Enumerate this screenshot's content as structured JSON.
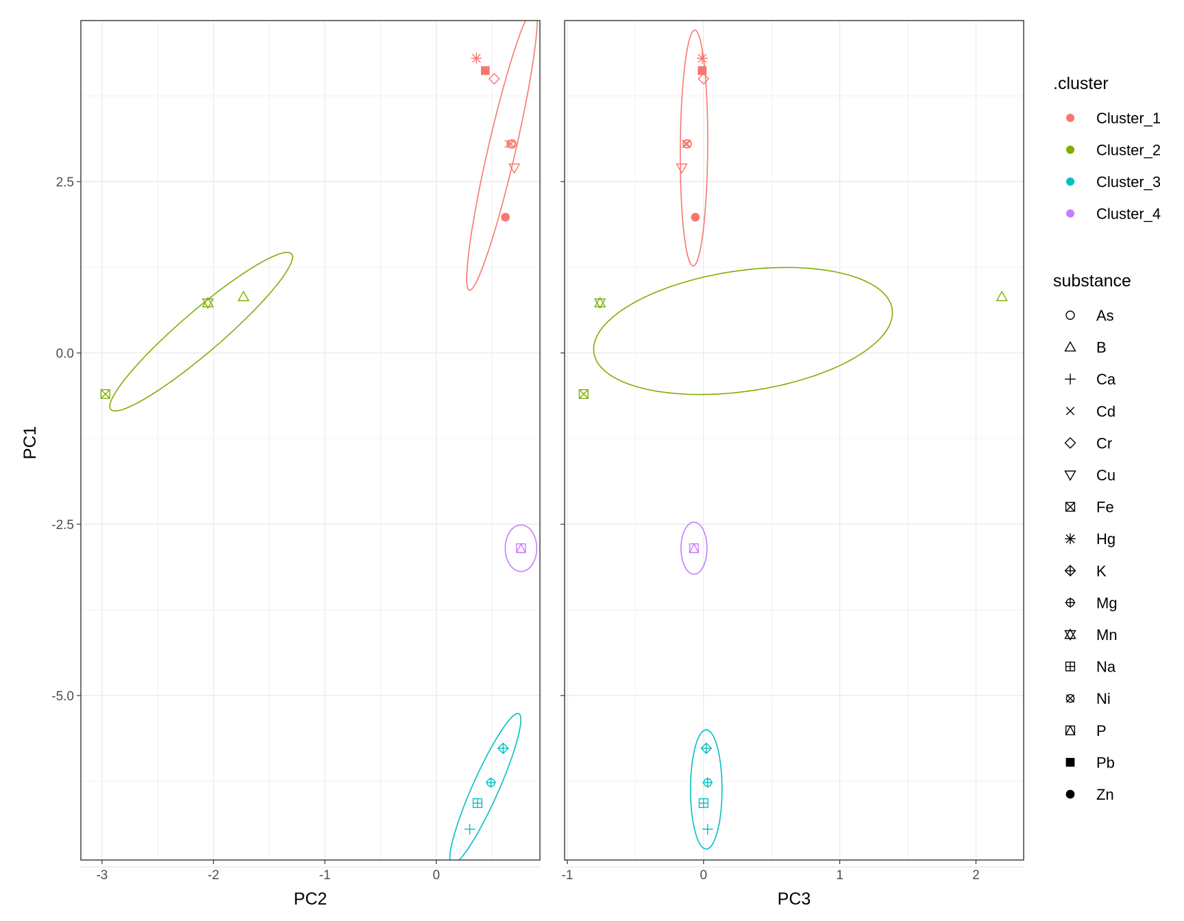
{
  "chart_data": {
    "type": "scatter",
    "ylabel": "PC1",
    "y_ticks": [
      2.5,
      0.0,
      -2.5,
      -5.0
    ],
    "y_tick_labels": [
      "2.5",
      "0.0",
      "-2.5",
      "-5.0"
    ],
    "ylim": [
      -7.4,
      4.85
    ],
    "grid": true,
    "legend_position": "right",
    "colors": {
      "Cluster_1": "#F8766D",
      "Cluster_2": "#7CAE00",
      "Cluster_3": "#00BFC4",
      "Cluster_4": "#C77CFF"
    },
    "legends": {
      "cluster": {
        "title": ".cluster",
        "items": [
          "Cluster_1",
          "Cluster_2",
          "Cluster_3",
          "Cluster_4"
        ]
      },
      "substance": {
        "title": "substance",
        "items": [
          "As",
          "B",
          "Ca",
          "Cd",
          "Cr",
          "Cu",
          "Fe",
          "Hg",
          "K",
          "Mg",
          "Mn",
          "Na",
          "Ni",
          "P",
          "Pb",
          "Zn"
        ]
      }
    },
    "points": [
      {
        "substance": "As",
        "cluster": "Cluster_1",
        "PC1": 3.05,
        "PC2": 0.68,
        "PC3": -0.12
      },
      {
        "substance": "Cd",
        "cluster": "Cluster_1",
        "PC1": 3.05,
        "PC2": 0.65,
        "PC3": -0.13
      },
      {
        "substance": "Ni",
        "cluster": "Cluster_1",
        "PC1": 3.05,
        "PC2": 0.67,
        "PC3": -0.12
      },
      {
        "substance": "Cr",
        "cluster": "Cluster_1",
        "PC1": 4.0,
        "PC2": 0.52,
        "PC3": 0.0
      },
      {
        "substance": "Cu",
        "cluster": "Cluster_1",
        "PC1": 2.7,
        "PC2": 0.7,
        "PC3": -0.16
      },
      {
        "substance": "Hg",
        "cluster": "Cluster_1",
        "PC1": 4.3,
        "PC2": 0.36,
        "PC3": -0.01
      },
      {
        "substance": "Pb",
        "cluster": "Cluster_1",
        "PC1": 4.12,
        "PC2": 0.44,
        "PC3": -0.01
      },
      {
        "substance": "Zn",
        "cluster": "Cluster_1",
        "PC1": 1.98,
        "PC2": 0.62,
        "PC3": -0.06
      },
      {
        "substance": "B",
        "cluster": "Cluster_2",
        "PC1": 0.82,
        "PC2": -1.73,
        "PC3": 2.19
      },
      {
        "substance": "Mn",
        "cluster": "Cluster_2",
        "PC1": 0.73,
        "PC2": -2.05,
        "PC3": -0.76
      },
      {
        "substance": "Fe",
        "cluster": "Cluster_2",
        "PC1": -0.6,
        "PC2": -2.97,
        "PC3": -0.88
      },
      {
        "substance": "K",
        "cluster": "Cluster_3",
        "PC1": -5.77,
        "PC2": 0.6,
        "PC3": 0.02
      },
      {
        "substance": "Mg",
        "cluster": "Cluster_3",
        "PC1": -6.27,
        "PC2": 0.49,
        "PC3": 0.03
      },
      {
        "substance": "Na",
        "cluster": "Cluster_3",
        "PC1": -6.57,
        "PC2": 0.37,
        "PC3": -0.0
      },
      {
        "substance": "Ca",
        "cluster": "Cluster_3",
        "PC1": -6.95,
        "PC2": 0.3,
        "PC3": 0.03
      },
      {
        "substance": "P",
        "cluster": "Cluster_4",
        "PC1": -2.85,
        "PC2": 0.76,
        "PC3": -0.07
      }
    ],
    "panels": [
      {
        "xlabel": "PC2",
        "xvar": "PC2",
        "xlim": [
          -3.19,
          0.93
        ],
        "x_ticks": [
          -3,
          -2,
          -1,
          0
        ],
        "x_tick_labels": [
          "-3",
          "-2",
          "-1",
          "0"
        ],
        "ellipses": [
          {
            "cluster": "Cluster_1",
            "cx": 0.59,
            "cy": 2.98,
            "a": 2.12,
            "b": 0.2,
            "angle_deg": 77.0
          },
          {
            "cluster": "Cluster_2",
            "cx": -2.11,
            "cy": 0.31,
            "a": 1.74,
            "b": 0.3,
            "angle_deg": 40.7
          },
          {
            "cluster": "Cluster_3",
            "cx": 0.44,
            "cy": -6.36,
            "a": 1.2,
            "b": 0.19,
            "angle_deg": 66.0
          },
          {
            "cluster": "Cluster_4",
            "cx": 0.76,
            "cy": -2.85,
            "a": 0.34,
            "b": 0.23,
            "angle_deg": 90.0
          }
        ]
      },
      {
        "xlabel": "PC3",
        "xvar": "PC3",
        "xlim": [
          -1.02,
          2.35
        ],
        "x_ticks": [
          -1,
          0,
          1,
          2
        ],
        "x_tick_labels": [
          "-1",
          "0",
          "1",
          "2"
        ],
        "ellipses": [
          {
            "cluster": "Cluster_1",
            "cx": -0.07,
            "cy": 2.99,
            "a": 1.72,
            "b": 0.2,
            "angle_deg": 89.6
          },
          {
            "cluster": "Cluster_2",
            "cx": 0.29,
            "cy": 0.32,
            "a": 2.2,
            "b": 0.88,
            "angle_deg": 8.3
          },
          {
            "cluster": "Cluster_3",
            "cx": 0.02,
            "cy": -6.37,
            "a": 0.87,
            "b": 0.23,
            "angle_deg": 90.0
          },
          {
            "cluster": "Cluster_4",
            "cx": -0.07,
            "cy": -2.85,
            "a": 0.38,
            "b": 0.19,
            "angle_deg": 90.0
          }
        ]
      }
    ]
  }
}
